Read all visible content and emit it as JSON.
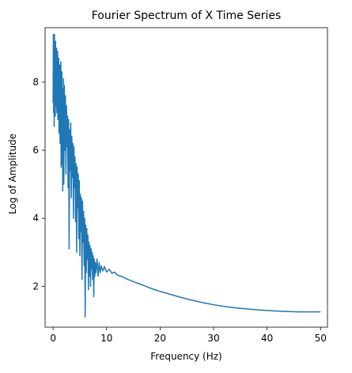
{
  "chart_data": {
    "type": "line",
    "title": "Fourier Spectrum of X Time Series",
    "xlabel": "Frequency (Hz)",
    "ylabel": "Log of Amplitude",
    "xlim": [
      -1.5,
      51.3
    ],
    "ylim": [
      0.8,
      9.6
    ],
    "xticks": [
      0,
      10,
      20,
      30,
      40,
      50
    ],
    "yticks": [
      2,
      4,
      6,
      8
    ],
    "grid": false,
    "legend": "none",
    "series": [
      {
        "color": "#1f77b4",
        "description_points": [
          [
            0.0,
            7.4
          ],
          [
            0.05,
            9.4
          ],
          [
            0.1,
            7.1
          ],
          [
            0.15,
            8.9
          ],
          [
            0.2,
            6.7
          ],
          [
            0.25,
            9.4
          ],
          [
            0.3,
            7.6
          ],
          [
            0.35,
            9.1
          ],
          [
            0.4,
            7.0
          ],
          [
            0.45,
            9.2
          ],
          [
            0.5,
            7.5
          ],
          [
            0.55,
            8.8
          ],
          [
            0.6,
            7.3
          ],
          [
            0.65,
            9.0
          ],
          [
            0.7,
            7.1
          ],
          [
            0.75,
            8.5
          ],
          [
            0.8,
            7.6
          ],
          [
            0.85,
            8.9
          ],
          [
            0.9,
            6.9
          ],
          [
            0.95,
            8.6
          ],
          [
            1.0,
            7.4
          ],
          [
            1.05,
            8.7
          ],
          [
            1.1,
            6.5
          ],
          [
            1.15,
            8.2
          ],
          [
            1.2,
            7.0
          ],
          [
            1.25,
            8.5
          ],
          [
            1.3,
            6.2
          ],
          [
            1.35,
            8.4
          ],
          [
            1.4,
            7.2
          ],
          [
            1.45,
            8.6
          ],
          [
            1.5,
            5.5
          ],
          [
            1.55,
            8.0
          ],
          [
            1.6,
            6.8
          ],
          [
            1.65,
            8.3
          ],
          [
            1.7,
            5.6
          ],
          [
            1.75,
            7.8
          ],
          [
            1.8,
            4.8
          ],
          [
            1.85,
            7.5
          ],
          [
            1.9,
            6.3
          ],
          [
            1.95,
            8.1
          ],
          [
            2.0,
            5.0
          ],
          [
            2.1,
            7.9
          ],
          [
            2.2,
            6.0
          ],
          [
            2.3,
            7.6
          ],
          [
            2.4,
            5.3
          ],
          [
            2.5,
            7.3
          ],
          [
            2.6,
            6.1
          ],
          [
            2.7,
            7.0
          ],
          [
            2.8,
            4.9
          ],
          [
            2.9,
            6.9
          ],
          [
            3.0,
            3.1
          ],
          [
            3.1,
            6.6
          ],
          [
            3.2,
            5.4
          ],
          [
            3.3,
            6.8
          ],
          [
            3.4,
            4.6
          ],
          [
            3.5,
            6.4
          ],
          [
            3.6,
            5.2
          ],
          [
            3.7,
            6.2
          ],
          [
            3.8,
            4.0
          ],
          [
            3.9,
            6.1
          ],
          [
            4.0,
            4.9
          ],
          [
            4.1,
            5.8
          ],
          [
            4.2,
            3.9
          ],
          [
            4.3,
            5.6
          ],
          [
            4.4,
            3.0
          ],
          [
            4.5,
            5.5
          ],
          [
            4.6,
            4.3
          ],
          [
            4.7,
            5.3
          ],
          [
            4.8,
            3.4
          ],
          [
            4.9,
            5.1
          ],
          [
            5.0,
            2.9
          ],
          [
            5.1,
            4.7
          ],
          [
            5.2,
            3.6
          ],
          [
            5.3,
            4.6
          ],
          [
            5.4,
            2.2
          ],
          [
            5.5,
            4.5
          ],
          [
            5.6,
            3.3
          ],
          [
            5.7,
            4.2
          ],
          [
            5.8,
            2.6
          ],
          [
            5.9,
            4.0
          ],
          [
            6.0,
            1.1
          ],
          [
            6.1,
            3.8
          ],
          [
            6.2,
            2.4
          ],
          [
            6.3,
            3.7
          ],
          [
            6.4,
            2.8
          ],
          [
            6.5,
            3.5
          ],
          [
            6.6,
            1.9
          ],
          [
            6.7,
            3.3
          ],
          [
            6.8,
            2.3
          ],
          [
            6.9,
            3.2
          ],
          [
            7.0,
            2.0
          ],
          [
            7.1,
            3.1
          ],
          [
            7.2,
            2.5
          ],
          [
            7.3,
            3.0
          ],
          [
            7.4,
            2.2
          ],
          [
            7.5,
            2.9
          ],
          [
            7.6,
            1.7
          ],
          [
            7.7,
            2.8
          ],
          [
            7.8,
            2.3
          ],
          [
            7.9,
            2.7
          ],
          [
            8.0,
            2.4
          ],
          [
            8.2,
            2.8
          ],
          [
            8.4,
            2.3
          ],
          [
            8.6,
            2.7
          ],
          [
            8.8,
            2.4
          ],
          [
            9.0,
            2.6
          ],
          [
            9.3,
            2.45
          ],
          [
            9.6,
            2.58
          ],
          [
            10.0,
            2.42
          ],
          [
            10.5,
            2.5
          ],
          [
            11.0,
            2.38
          ],
          [
            11.5,
            2.42
          ],
          [
            12.0,
            2.33
          ],
          [
            13,
            2.28
          ],
          [
            14,
            2.2
          ],
          [
            15,
            2.14
          ],
          [
            16,
            2.08
          ],
          [
            17,
            2.02
          ],
          [
            18,
            1.96
          ],
          [
            19,
            1.9
          ],
          [
            20,
            1.85
          ],
          [
            22,
            1.76
          ],
          [
            24,
            1.67
          ],
          [
            26,
            1.59
          ],
          [
            28,
            1.52
          ],
          [
            30,
            1.46
          ],
          [
            32,
            1.41
          ],
          [
            34,
            1.37
          ],
          [
            36,
            1.34
          ],
          [
            38,
            1.31
          ],
          [
            40,
            1.29
          ],
          [
            42,
            1.27
          ],
          [
            44,
            1.26
          ],
          [
            46,
            1.25
          ],
          [
            48,
            1.25
          ],
          [
            50,
            1.25
          ]
        ]
      }
    ]
  }
}
